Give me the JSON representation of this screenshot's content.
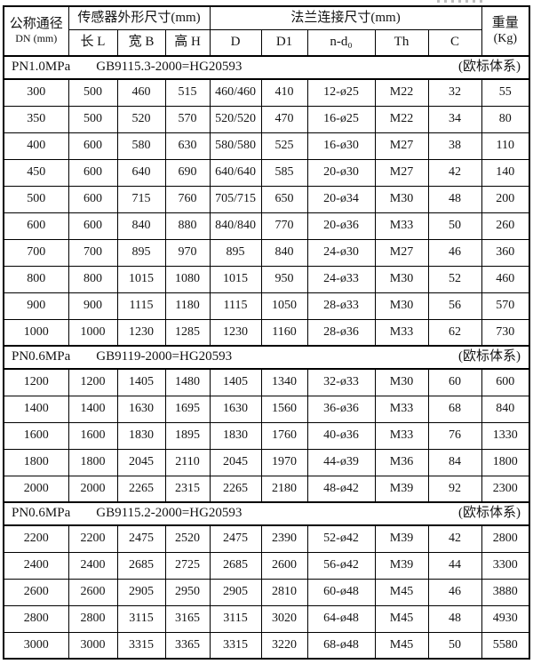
{
  "table": {
    "header": {
      "dn_line1": "公称通径",
      "dn_line2": "DN (mm)",
      "group_sensor": "传感器外形尺寸(mm)",
      "group_flange": "法兰连接尺寸(mm)",
      "weight_line1": "重量",
      "weight_line2": "(Kg)",
      "sub": [
        "长 L",
        "宽 B",
        "高 H",
        "D",
        "D1",
        "n-d₀",
        "Th",
        "C"
      ]
    },
    "sections": [
      {
        "pressure": "PN1.0MPa",
        "standard": "GB9115.3-2000=HG20593",
        "note": "(欧标体系)",
        "rows": [
          [
            "300",
            "500",
            "460",
            "515",
            "460/460",
            "410",
            "12-ø25",
            "M22",
            "32",
            "55"
          ],
          [
            "350",
            "500",
            "520",
            "570",
            "520/520",
            "470",
            "16-ø25",
            "M22",
            "34",
            "80"
          ],
          [
            "400",
            "600",
            "580",
            "630",
            "580/580",
            "525",
            "16-ø30",
            "M27",
            "38",
            "110"
          ],
          [
            "450",
            "600",
            "640",
            "690",
            "640/640",
            "585",
            "20-ø30",
            "M27",
            "42",
            "140"
          ],
          [
            "500",
            "600",
            "715",
            "760",
            "705/715",
            "650",
            "20-ø34",
            "M30",
            "48",
            "200"
          ],
          [
            "600",
            "600",
            "840",
            "880",
            "840/840",
            "770",
            "20-ø36",
            "M33",
            "50",
            "260"
          ],
          [
            "700",
            "700",
            "895",
            "970",
            "895",
            "840",
            "24-ø30",
            "M27",
            "46",
            "360"
          ],
          [
            "800",
            "800",
            "1015",
            "1080",
            "1015",
            "950",
            "24-ø33",
            "M30",
            "52",
            "460"
          ],
          [
            "900",
            "900",
            "1115",
            "1180",
            "1115",
            "1050",
            "28-ø33",
            "M30",
            "56",
            "570"
          ],
          [
            "1000",
            "1000",
            "1230",
            "1285",
            "1230",
            "1160",
            "28-ø36",
            "M33",
            "62",
            "730"
          ]
        ]
      },
      {
        "pressure": "PN0.6MPa",
        "standard": "GB9119-2000=HG20593",
        "note": "(欧标体系)",
        "rows": [
          [
            "1200",
            "1200",
            "1405",
            "1480",
            "1405",
            "1340",
            "32-ø33",
            "M30",
            "60",
            "600"
          ],
          [
            "1400",
            "1400",
            "1630",
            "1695",
            "1630",
            "1560",
            "36-ø36",
            "M33",
            "68",
            "840"
          ],
          [
            "1600",
            "1600",
            "1830",
            "1895",
            "1830",
            "1760",
            "40-ø36",
            "M33",
            "76",
            "1330"
          ],
          [
            "1800",
            "1800",
            "2045",
            "2110",
            "2045",
            "1970",
            "44-ø39",
            "M36",
            "84",
            "1800"
          ],
          [
            "2000",
            "2000",
            "2265",
            "2315",
            "2265",
            "2180",
            "48-ø42",
            "M39",
            "92",
            "2300"
          ]
        ]
      },
      {
        "pressure": "PN0.6MPa",
        "standard": "GB9115.2-2000=HG20593",
        "note": "(欧标体系)",
        "rows": [
          [
            "2200",
            "2200",
            "2475",
            "2520",
            "2475",
            "2390",
            "52-ø42",
            "M39",
            "42",
            "2800"
          ],
          [
            "2400",
            "2400",
            "2685",
            "2725",
            "2685",
            "2600",
            "56-ø42",
            "M39",
            "44",
            "3300"
          ],
          [
            "2600",
            "2600",
            "2905",
            "2950",
            "2905",
            "2810",
            "60-ø48",
            "M45",
            "46",
            "3880"
          ],
          [
            "2800",
            "2800",
            "3115",
            "3165",
            "3115",
            "3020",
            "64-ø48",
            "M45",
            "48",
            "4930"
          ],
          [
            "3000",
            "3000",
            "3315",
            "3365",
            "3315",
            "3220",
            "68-ø48",
            "M45",
            "50",
            "5580"
          ]
        ]
      }
    ]
  }
}
